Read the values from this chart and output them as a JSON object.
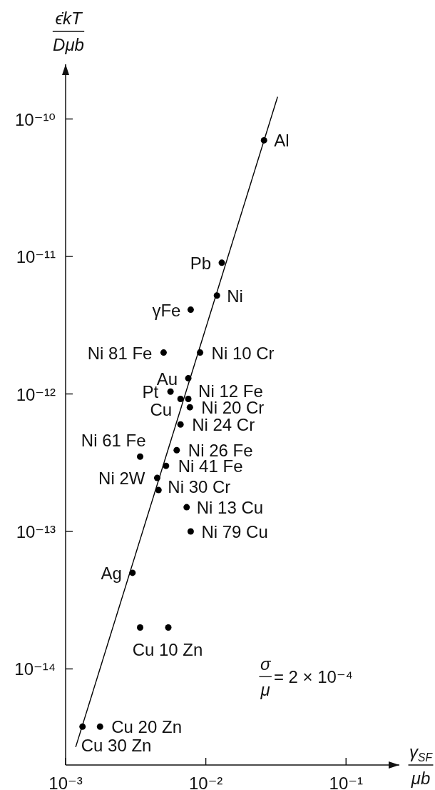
{
  "chart_data": {
    "type": "scatter",
    "xlabel": "γ$_{SF}$\nμb",
    "ylabel": "ϵ̇kT\nDμb",
    "log": "xy",
    "marker": "circle",
    "xlim": [
      0.001,
      0.24
    ],
    "xticks": [
      {
        "value": 0.001,
        "label": "10⁻³"
      },
      {
        "value": 0.01,
        "label": "10⁻²"
      },
      {
        "value": 0.1,
        "label": "10⁻¹"
      }
    ],
    "ylim": [
      2e-15,
      2.5e-10
    ],
    "yticks": [
      {
        "value": 1e-14,
        "label": "10⁻¹⁴"
      },
      {
        "value": 1e-13,
        "label": "10⁻¹³"
      },
      {
        "value": 1e-12,
        "label": "10⁻¹²"
      },
      {
        "value": 1e-11,
        "label": "10⁻¹¹"
      },
      {
        "value": 1e-10,
        "label": "10⁻¹⁰"
      }
    ],
    "series": [
      {
        "color": "#000000",
        "x": [
          0.026,
          0.013,
          0.012,
          0.0078,
          0.005,
          0.0091,
          0.0075,
          0.0056,
          0.0066,
          0.0075,
          0.0077,
          0.0066,
          0.0062,
          0.0034,
          0.0052,
          0.0045,
          0.0046,
          0.0073,
          0.0078,
          0.003,
          0.0034,
          0.0054,
          0.00176,
          0.00132
        ],
        "values": [
          7e-11,
          9e-12,
          5.2e-12,
          4.1e-12,
          2e-12,
          2e-12,
          1.3e-12,
          1.04e-12,
          9.2e-13,
          9.2e-13,
          8e-13,
          6e-13,
          3.9e-13,
          3.5e-13,
          3e-13,
          2.45e-13,
          2e-13,
          1.5e-13,
          1e-13,
          5e-14,
          2e-14,
          2e-14,
          3.8e-15,
          3.8e-15
        ]
      },
      {
        "type": "line",
        "marker": "none",
        "color": "#000000",
        "x": [
          0.00118,
          0.0325
        ],
        "values": [
          2.7e-15,
          1.45e-10
        ]
      }
    ],
    "annotations": [
      {
        "text": "Al",
        "x": 0.026,
        "y": 7e-11
      },
      {
        "text": "Pb",
        "x": 0.013,
        "y": 9e-12
      },
      {
        "text": "Ni",
        "x": 0.012,
        "y": 5.2e-12
      },
      {
        "text": "γFe",
        "x": 0.0078,
        "y": 4.1e-12
      },
      {
        "text": "Ni 81 Fe",
        "x": 0.005,
        "y": 2e-12
      },
      {
        "text": "Ni 10 Cr",
        "x": 0.0091,
        "y": 2e-12
      },
      {
        "text": "Au",
        "x": 0.0075,
        "y": 1.3e-12
      },
      {
        "text": "Pt",
        "x": 0.0056,
        "y": 1.04e-12
      },
      {
        "text": "Cu",
        "x": 0.0066,
        "y": 9.2e-13
      },
      {
        "text": "Ni 12 Fe",
        "x": 0.0075,
        "y": 9.2e-13
      },
      {
        "text": "Ni 20 Cr",
        "x": 0.0077,
        "y": 8e-13
      },
      {
        "text": "Ni 24 Cr",
        "x": 0.0066,
        "y": 6e-13
      },
      {
        "text": "Ni 26 Fe",
        "x": 0.0062,
        "y": 3.9e-13
      },
      {
        "text": "Ni 61 Fe",
        "x": 0.0034,
        "y": 3.5e-13
      },
      {
        "text": "Ni 41 Fe",
        "x": 0.0052,
        "y": 3e-13
      },
      {
        "text": "Ni 2W",
        "x": 0.0045,
        "y": 2.45e-13
      },
      {
        "text": "Ni 30 Cr",
        "x": 0.0046,
        "y": 2e-13
      },
      {
        "text": "Ni 13 Cu",
        "x": 0.0073,
        "y": 1.5e-13
      },
      {
        "text": "Ni 79 Cu",
        "x": 0.0078,
        "y": 1e-13
      },
      {
        "text": "Ag",
        "x": 0.003,
        "y": 5e-14
      },
      {
        "text": "Cu 10 Zn",
        "x": 0.0054,
        "y": 2e-14
      },
      {
        "text": "Cu 20 Zn",
        "x": 0.00176,
        "y": 3.8e-15
      },
      {
        "text": "Cu 30 Zn",
        "x": 0.00132,
        "y": 3.8e-15
      },
      "σ\nμ = 2 × 10⁻⁴"
    ]
  }
}
